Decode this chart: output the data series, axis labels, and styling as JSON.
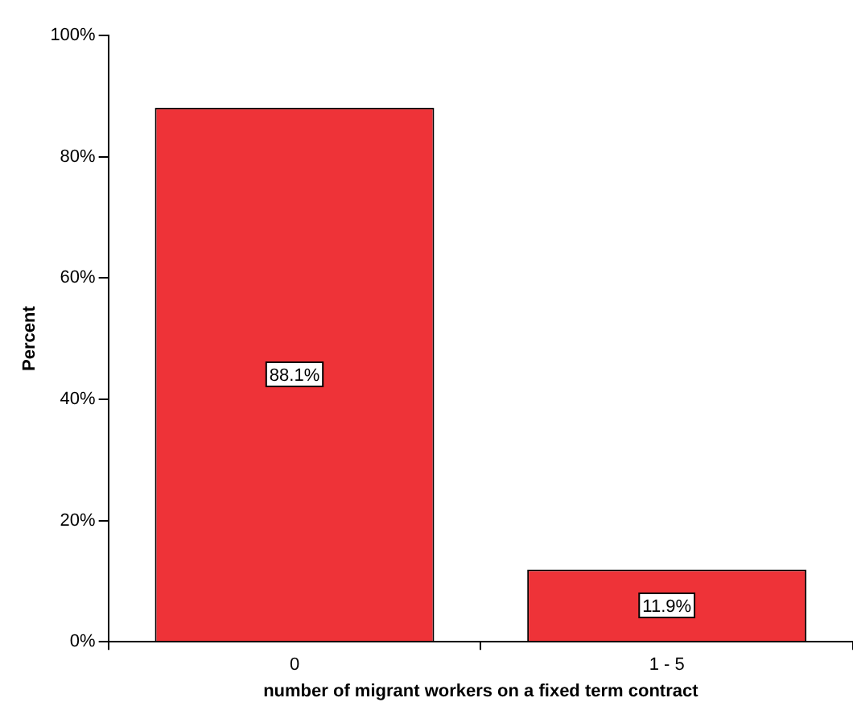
{
  "chart_data": {
    "type": "bar",
    "xlabel": "number of migrant workers on a fixed term contract",
    "ylabel": "Percent",
    "categories": [
      "0",
      "1 - 5"
    ],
    "values": [
      88.1,
      11.9
    ],
    "value_labels": [
      "88.1%",
      "11.9%"
    ],
    "color": "#ee3338",
    "ylim": [
      0,
      100
    ],
    "yticks": [
      {
        "value": 0,
        "label": "0%"
      },
      {
        "value": 20,
        "label": "20%"
      },
      {
        "value": 40,
        "label": "40%"
      },
      {
        "value": 60,
        "label": "60%"
      },
      {
        "value": 80,
        "label": "80%"
      },
      {
        "value": 100,
        "label": "100%"
      }
    ],
    "grid": false,
    "legend": false
  }
}
